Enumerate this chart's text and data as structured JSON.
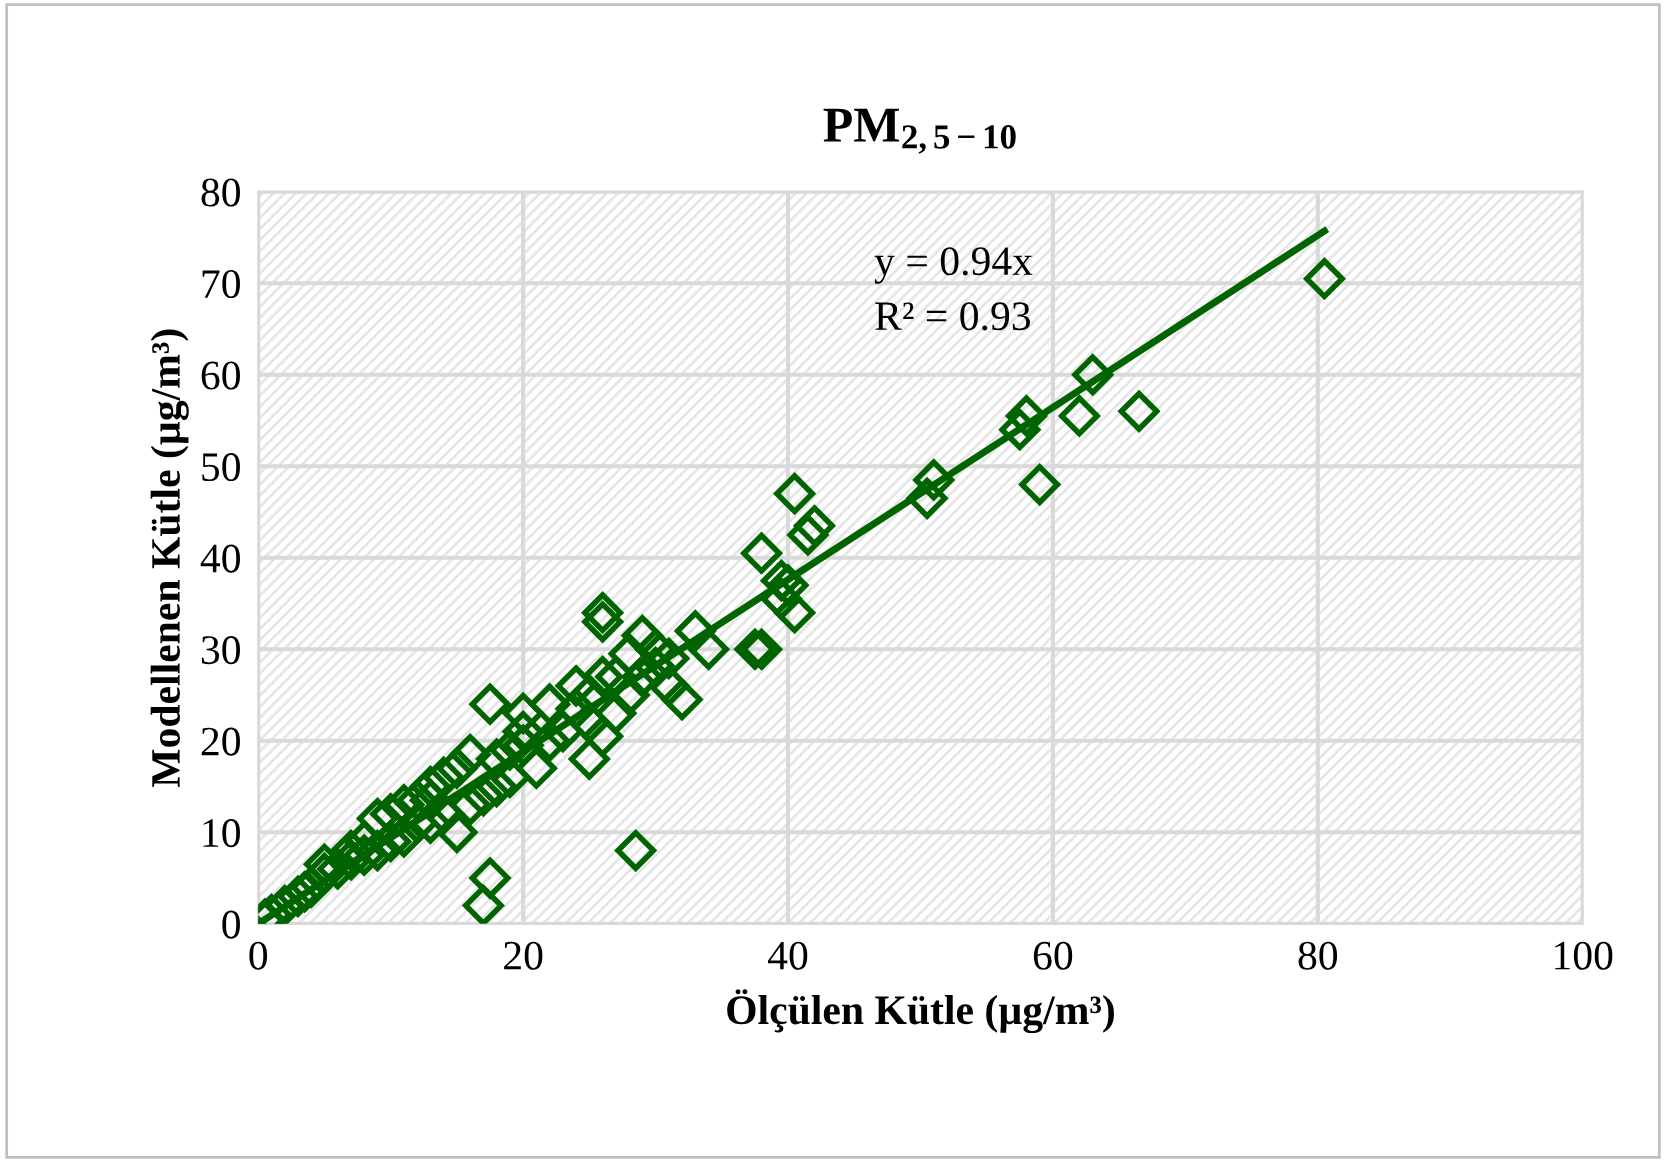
{
  "chart_data": {
    "type": "scatter",
    "title": "PM$_{2,5−10}$",
    "xlabel": "Ölçülen Kütle (µg/m³)",
    "ylabel": "Modellenen Kütle (µg/m³)",
    "xlim": [
      0,
      100
    ],
    "xticks": [
      0,
      20,
      40,
      60,
      80,
      100
    ],
    "ylim": [
      0,
      80
    ],
    "yticks": [
      0,
      10,
      20,
      30,
      40,
      50,
      60,
      70,
      80
    ],
    "grid": true,
    "marker": "diamond",
    "legend": false,
    "annotations": [
      "y = 0.94x",
      "R² = 0.93"
    ],
    "series": [
      {
        "color": "#006400",
        "x": [
          80.5,
          63,
          66.5,
          62,
          58,
          57.5,
          59,
          51,
          50.5,
          40.5,
          42,
          41.5,
          38,
          39.5,
          40,
          40.5,
          39.5,
          38,
          37.5,
          33,
          34,
          31,
          32,
          30,
          29,
          26,
          26,
          28.5,
          17.5,
          17.5,
          17,
          25,
          26,
          27,
          28,
          24,
          22,
          20,
          20,
          19,
          16,
          15,
          14,
          13,
          12,
          11,
          10,
          9,
          15,
          18,
          21,
          23,
          25,
          27,
          30,
          28,
          24,
          22,
          19,
          17,
          16,
          14,
          13,
          11,
          10,
          9,
          8,
          7,
          6,
          5,
          5,
          4,
          3,
          2,
          1,
          0.5,
          3.5,
          7,
          8,
          12,
          13,
          18,
          20,
          25,
          26,
          31,
          29
        ],
        "values": [
          70.5,
          60,
          56,
          55.5,
          55.5,
          54,
          48,
          48.5,
          46.5,
          47,
          43.5,
          42.5,
          40.5,
          37.5,
          37,
          34,
          35.5,
          30,
          30,
          32,
          30,
          26,
          24.5,
          30,
          31.5,
          34,
          33,
          8,
          24,
          5,
          2,
          18,
          20.5,
          23,
          25,
          26,
          24,
          23,
          21,
          19,
          18.5,
          17,
          16,
          15,
          13.5,
          13,
          12,
          11.5,
          10,
          15,
          17,
          21,
          22,
          27,
          28,
          29.5,
          23.5,
          20,
          16,
          14,
          13,
          12,
          11,
          9.5,
          9,
          8,
          7.5,
          7,
          6,
          5.5,
          6.5,
          4,
          3,
          2,
          1,
          0.5,
          3.5,
          8,
          9,
          11,
          13.5,
          18,
          19.5,
          25,
          27,
          29,
          27
        ]
      },
      {
        "type": "line",
        "color": "#006400",
        "x": [
          0,
          80.5
        ],
        "values": [
          0,
          75.7
        ],
        "marker": "none"
      }
    ]
  }
}
